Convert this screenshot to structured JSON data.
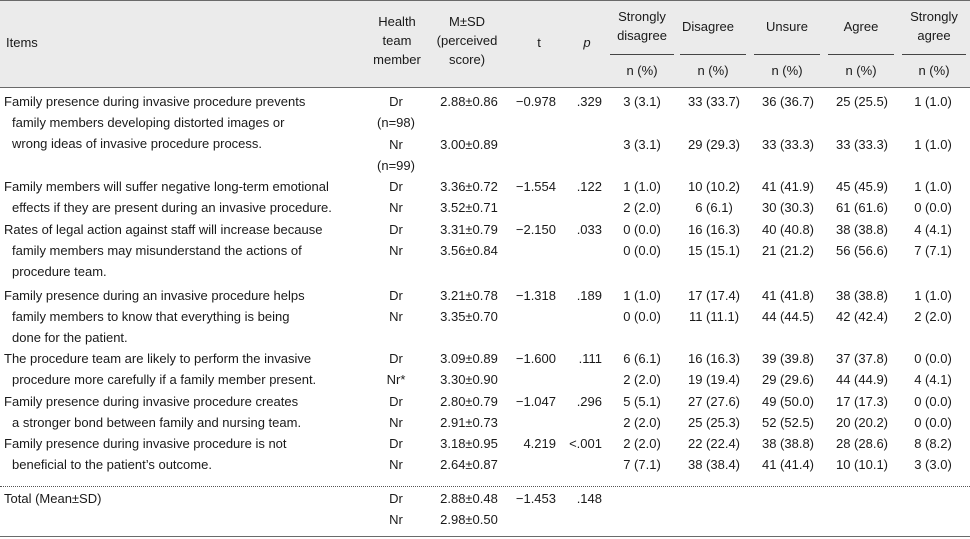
{
  "header": {
    "items": "Items",
    "member_l1": "Health",
    "member_l2": "team",
    "member_l3": "member",
    "msd_l1": "M±SD",
    "msd_l2": "(perceived",
    "msd_l3": "score)",
    "t": "t",
    "p": "p",
    "sd_l1": "Strongly",
    "sd_l2": "disagree",
    "disagree": "Disagree",
    "unsure": "Unsure",
    "agree": "Agree",
    "sa_l1": "Strongly",
    "sa_l2": "agree",
    "npct": "n (%)"
  },
  "rows": [
    {
      "item": [
        "Family presence during invasive procedure prevents",
        "family members developing distorted images or",
        "wrong ideas of invasive procedure process."
      ],
      "dr": {
        "member": "Dr",
        "sub": "(n=98)",
        "msd": "2.88±0.86",
        "t": "−0.978",
        "p": ".329",
        "sd": "3 (3.1)",
        "d": "33 (33.7)",
        "u": "36 (36.7)",
        "a": "25 (25.5)",
        "sa": "1 (1.0)"
      },
      "nr": {
        "member": "Nr",
        "sub": "(n=99)",
        "msd": "3.00±0.89",
        "sd": "3 (3.1)",
        "d": "29 (29.3)",
        "u": "33 (33.3)",
        "a": "33 (33.3)",
        "sa": "1 (1.0)"
      }
    },
    {
      "item": [
        "Family members will suffer negative long-term emotional",
        "effects if they are present during an invasive procedure."
      ],
      "dr": {
        "member": "Dr",
        "msd": "3.36±0.72",
        "t": "−1.554",
        "p": ".122",
        "sd": "1 (1.0)",
        "d": "10 (10.2)",
        "u": "41 (41.9)",
        "a": "45 (45.9)",
        "sa": "1 (1.0)"
      },
      "nr": {
        "member": "Nr",
        "msd": "3.52±0.71",
        "sd": "2 (2.0)",
        "d": "6 (6.1)",
        "u": "30 (30.3)",
        "a": "61 (61.6)",
        "sa": "0 (0.0)"
      }
    },
    {
      "item": [
        "Rates of legal action against staff will increase because",
        "family members may misunderstand the actions of",
        "procedure team."
      ],
      "dr": {
        "member": "Dr",
        "msd": "3.31±0.79",
        "t": "−2.150",
        "p": ".033",
        "sd": "0 (0.0)",
        "d": "16 (16.3)",
        "u": "40 (40.8)",
        "a": "38 (38.8)",
        "sa": "4 (4.1)"
      },
      "nr": {
        "member": "Nr",
        "msd": "3.56±0.84",
        "sd": "0 (0.0)",
        "d": "15 (15.1)",
        "u": "21 (21.2)",
        "a": "56 (56.6)",
        "sa": "7 (7.1)"
      }
    },
    {
      "item": [
        "Family presence during an invasive procedure helps",
        "family members to know that everything is being",
        "done for the patient."
      ],
      "dr": {
        "member": "Dr",
        "msd": "3.21±0.78",
        "t": "−1.318",
        "p": ".189",
        "sd": "1 (1.0)",
        "d": "17 (17.4)",
        "u": "41 (41.8)",
        "a": "38 (38.8)",
        "sa": "1 (1.0)"
      },
      "nr": {
        "member": "Nr",
        "msd": "3.35±0.70",
        "sd": "0 (0.0)",
        "d": "11 (11.1)",
        "u": "44 (44.5)",
        "a": "42 (42.4)",
        "sa": "2 (2.0)"
      }
    },
    {
      "item": [
        "The procedure team are likely to perform the invasive",
        "procedure more carefully if a family member present."
      ],
      "dr": {
        "member": "Dr",
        "msd": "3.09±0.89",
        "t": "−1.600",
        "p": ".111",
        "sd": "6 (6.1)",
        "d": "16 (16.3)",
        "u": "39 (39.8)",
        "a": "37 (37.8)",
        "sa": "0 (0.0)"
      },
      "nr": {
        "member": "Nr*",
        "msd": "3.30±0.90",
        "sd": "2 (2.0)",
        "d": "19 (19.4)",
        "u": "29 (29.6)",
        "a": "44 (44.9)",
        "sa": "4 (4.1)"
      }
    },
    {
      "item": [
        "Family presence during invasive procedure creates",
        "a stronger bond between family and nursing team."
      ],
      "dr": {
        "member": "Dr",
        "msd": "2.80±0.79",
        "t": "−1.047",
        "p": ".296",
        "sd": "5 (5.1)",
        "d": "27 (27.6)",
        "u": "49 (50.0)",
        "a": "17 (17.3)",
        "sa": "0 (0.0)"
      },
      "nr": {
        "member": "Nr",
        "msd": "2.91±0.73",
        "sd": "2 (2.0)",
        "d": "25 (25.3)",
        "u": "52 (52.5)",
        "a": "20 (20.2)",
        "sa": "0 (0.0)"
      }
    },
    {
      "item": [
        "Family presence during invasive procedure is not",
        "beneficial to the patient’s outcome."
      ],
      "dr": {
        "member": "Dr",
        "msd": "3.18±0.95",
        "t": "4.219",
        "p": "<.001",
        "sd": "2 (2.0)",
        "d": "22 (22.4)",
        "u": "38 (38.8)",
        "a": "28 (28.6)",
        "sa": "8 (8.2)"
      },
      "nr": {
        "member": "Nr",
        "msd": "2.64±0.87",
        "sd": "7 (7.1)",
        "d": "38 (38.4)",
        "u": "41 (41.4)",
        "a": "10 (10.1)",
        "sa": "3 (3.0)"
      }
    }
  ],
  "total": {
    "label": "Total (Mean±SD)",
    "dr": {
      "member": "Dr",
      "msd": "2.88±0.48",
      "t": "−1.453",
      "p": ".148"
    },
    "nr": {
      "member": "Nr",
      "msd": "2.98±0.50"
    }
  }
}
